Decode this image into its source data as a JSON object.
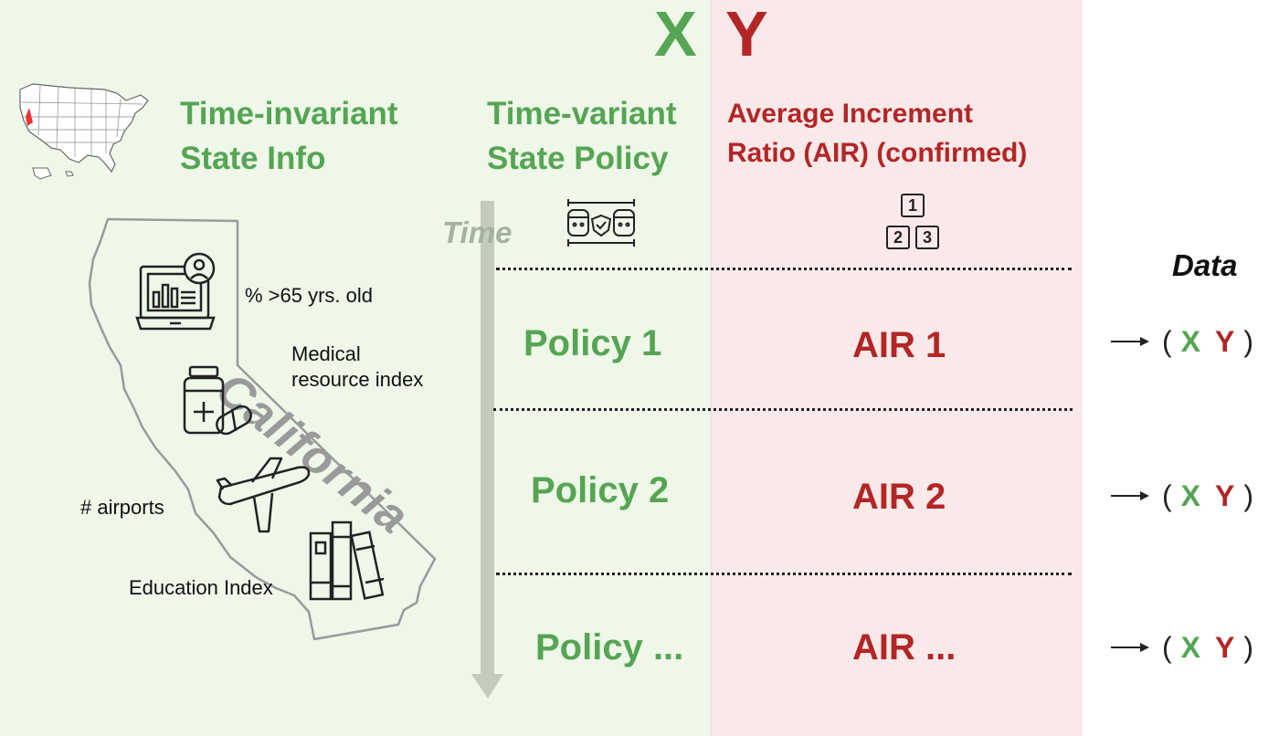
{
  "big_letters": {
    "x": "X",
    "y": "Y"
  },
  "headers": {
    "state_info": [
      "Time-invariant",
      "State Info"
    ],
    "state_policy": [
      "Time-variant",
      "State Policy"
    ],
    "air": [
      "Average Increment",
      "Ratio (AIR) (confirmed)"
    ]
  },
  "time_label": "Time",
  "california": {
    "state_name": "California",
    "features": {
      "age": "% >65 yrs. old",
      "medical": [
        "Medical",
        "resource index"
      ],
      "airports": "# airports",
      "education": "Education Index"
    }
  },
  "rows": [
    {
      "policy": "Policy 1",
      "air": "AIR 1"
    },
    {
      "policy": "Policy 2",
      "air": "AIR 2"
    },
    {
      "policy": "Policy ...",
      "air": "AIR ..."
    }
  ],
  "data_column": {
    "title": "Data",
    "open_paren": "(",
    "close_paren": ")",
    "x": "X",
    "y": "Y"
  },
  "rank_boxes": [
    "1",
    "2",
    "3"
  ],
  "colors": {
    "green": "#55a554",
    "red": "#b32626",
    "green_bg": "#eef7e8",
    "red_bg": "#fbe9ea"
  }
}
